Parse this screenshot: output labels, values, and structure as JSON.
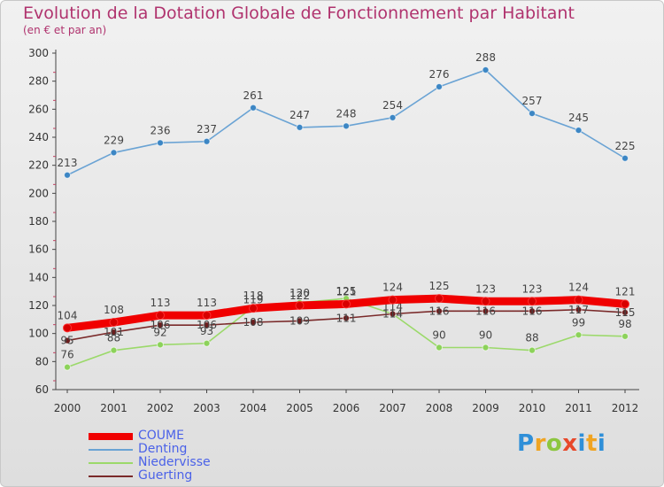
{
  "title": "Evolution de la Dotation Globale de Fonctionnement par Habitant",
  "subtitle": "(en € et par an)",
  "logo_text": "Proxiti",
  "chart_data": {
    "type": "line",
    "x": [
      "2000",
      "2001",
      "2002",
      "2003",
      "2004",
      "2005",
      "2006",
      "2007",
      "2008",
      "2009",
      "2010",
      "2011",
      "2012"
    ],
    "ylim": [
      60,
      300
    ],
    "yticks": [
      60,
      80,
      100,
      120,
      140,
      160,
      180,
      200,
      220,
      240,
      260,
      280,
      300
    ],
    "grid": false,
    "legend_position": "bottom-left",
    "series": [
      {
        "name": "Denting",
        "color": "#6aa3d4",
        "dot": "#3c86c4",
        "values": [
          213,
          229,
          236,
          237,
          261,
          247,
          248,
          254,
          276,
          288,
          257,
          245,
          225
        ]
      },
      {
        "name": "Niedervisse",
        "color": "#9bd96a",
        "dot": "#8cd25a",
        "values": [
          76,
          88,
          92,
          93,
          119,
          122,
          125,
          114,
          90,
          90,
          88,
          99,
          98
        ]
      },
      {
        "name": "Guerting",
        "color": "#7a2a2a",
        "dot": "#6b1e1e",
        "values": [
          95,
          101,
          106,
          106,
          108,
          109,
          111,
          114,
          116,
          116,
          116,
          117,
          115
        ]
      },
      {
        "name": "COUME",
        "color": "#f00000",
        "dot": "#d80000",
        "values": [
          104,
          108,
          113,
          113,
          118,
          120,
          121,
          124,
          125,
          123,
          123,
          124,
          121
        ]
      }
    ],
    "legend_order": [
      "COUME",
      "Denting",
      "Niedervisse",
      "Guerting"
    ]
  }
}
